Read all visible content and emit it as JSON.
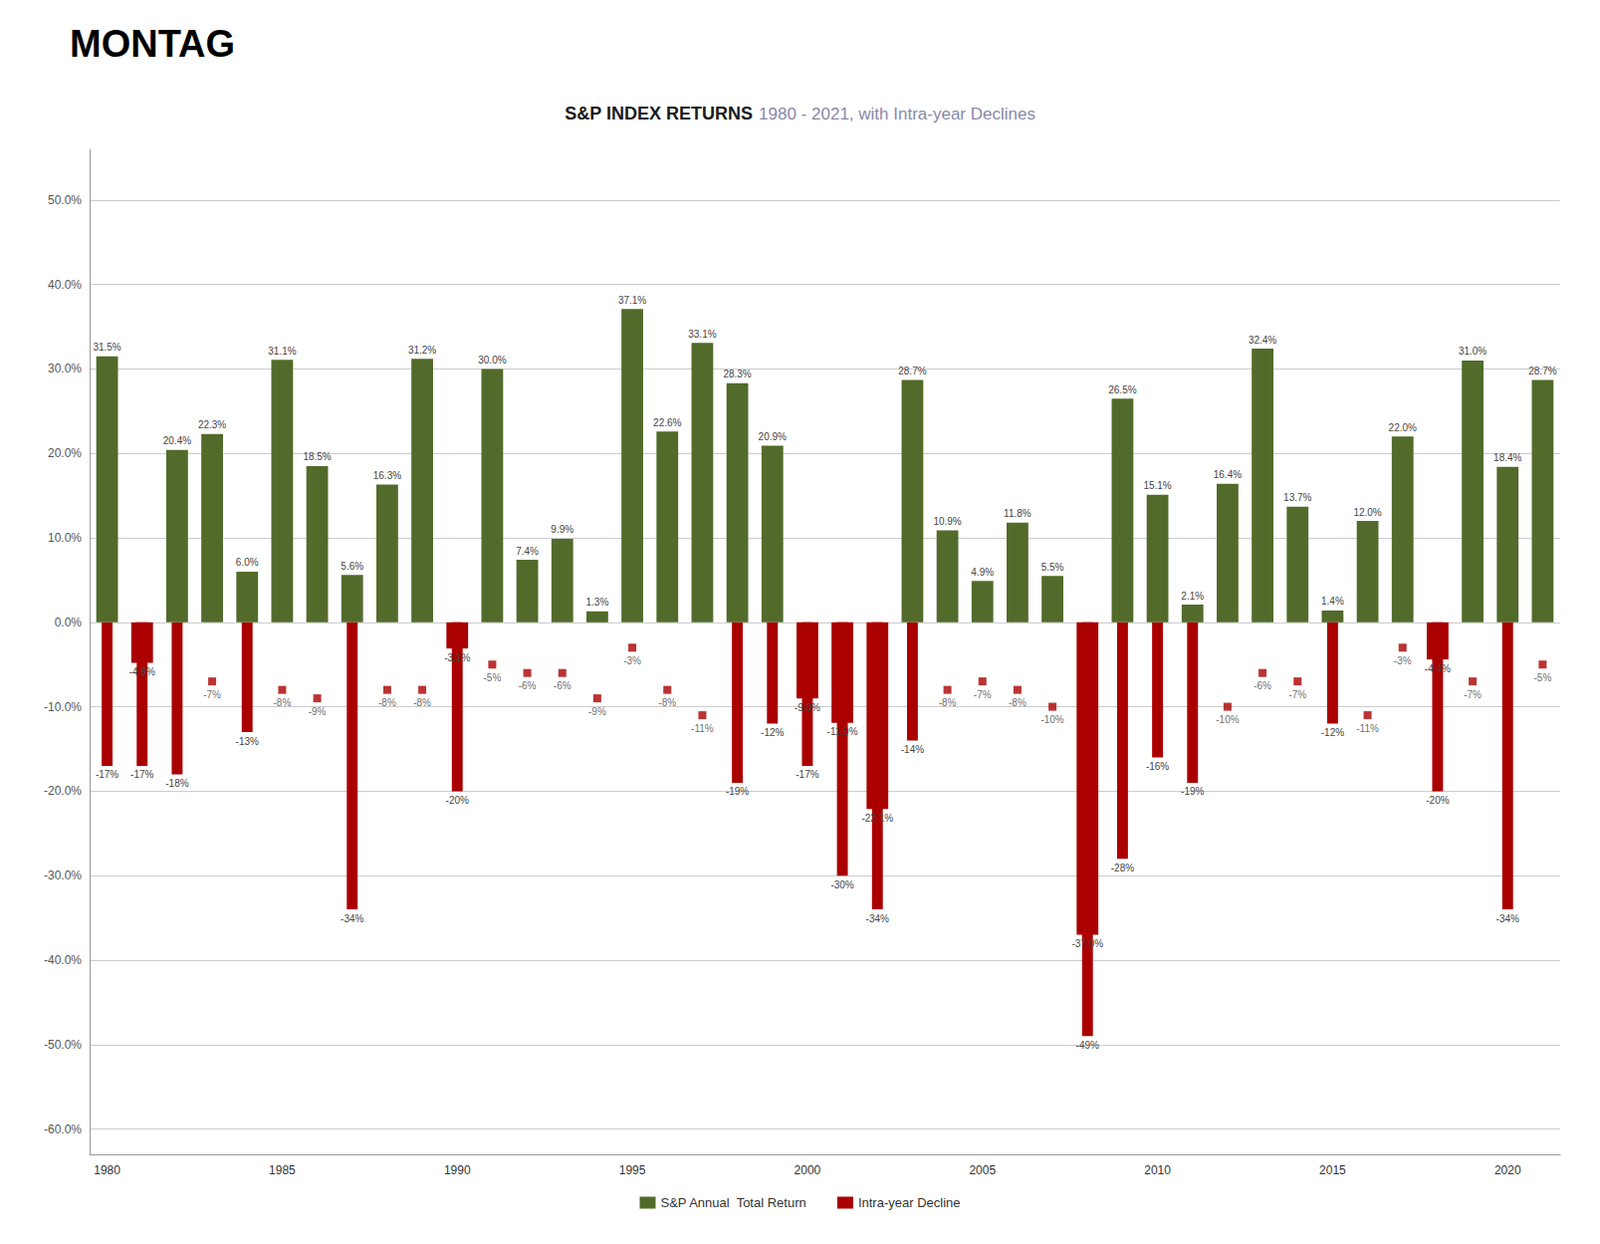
{
  "chart_data": {
    "type": "bar",
    "title": "S&P INDEX RETURNS",
    "subtitle": "1980 - 2021, with Intra-year Declines",
    "annotations": [
      "MONTAG"
    ],
    "categories": [
      "1980",
      null,
      null,
      null,
      null,
      "1985",
      null,
      null,
      null,
      null,
      "1990",
      null,
      null,
      null,
      null,
      "1995",
      null,
      null,
      null,
      null,
      "2000",
      null,
      null,
      null,
      null,
      "2005",
      null,
      null,
      null,
      null,
      "2010",
      null,
      null,
      null,
      null,
      "2015",
      null,
      null,
      null,
      null,
      "2020",
      null
    ],
    "series": [
      {
        "name": "S&P Annual  Total Return",
        "type": "bar",
        "color": "#526B2A",
        "colors": [
          "#526B2A",
          "#AA0000",
          "#526B2A",
          "#526B2A",
          "#526B2A",
          "#526B2A",
          "#526B2A",
          "#526B2A",
          "#526B2A",
          "#526B2A",
          "#AA0000",
          "#526B2A",
          "#526B2A",
          "#526B2A",
          "#526B2A",
          "#526B2A",
          "#526B2A",
          "#526B2A",
          "#526B2A",
          "#526B2A",
          "#AA0000",
          "#AA0000",
          "#AA0000",
          "#526B2A",
          "#526B2A",
          "#526B2A",
          "#526B2A",
          "#526B2A",
          "#AA0000",
          "#526B2A",
          "#526B2A",
          "#526B2A",
          "#526B2A",
          "#526B2A",
          "#526B2A",
          "#526B2A",
          "#526B2A",
          "#526B2A",
          "#AA0000",
          "#526B2A",
          "#526B2A",
          "#526B2A"
        ],
        "values": [
          31.5,
          -4.8,
          20.4,
          22.3,
          6.0,
          31.1,
          18.5,
          5.6,
          16.3,
          31.2,
          -3.1,
          30.0,
          7.4,
          9.9,
          1.3,
          37.1,
          22.6,
          33.1,
          28.3,
          20.9,
          -9.0,
          -11.9,
          -22.1,
          28.7,
          10.9,
          4.9,
          11.8,
          5.5,
          -37.0,
          26.5,
          15.1,
          2.1,
          16.4,
          32.4,
          13.7,
          1.4,
          12.0,
          22.0,
          -4.4,
          31.0,
          18.4,
          28.7
        ],
        "value_labels": [
          "31.5%",
          "-4.8%",
          "20.4%",
          "22.3%",
          "6.0%",
          "31.1%",
          "18.5%",
          "5.6%",
          "16.3%",
          "31.2%",
          "-3.1%",
          "30.0%",
          "7.4%",
          "9.9%",
          "1.3%",
          "37.1%",
          "22.6%",
          "33.1%",
          "28.3%",
          "20.9%",
          "-9.0%",
          "-11.9%",
          "-22.1%",
          "28.7%",
          "10.9%",
          "4.9%",
          "11.8%",
          "5.5%",
          "-37.0%",
          "26.5%",
          "15.1%",
          "2.1%",
          "16.4%",
          "32.4%",
          "13.7%",
          "1.4%",
          "12.0%",
          "22.0%",
          "-4.4%",
          "31.0%",
          "18.4%",
          "28.7%"
        ]
      },
      {
        "name": "Intra-year Decline",
        "type": "bar",
        "color": "#AA0000",
        "values": [
          -17,
          -17,
          -18,
          null,
          -13,
          null,
          null,
          -34,
          null,
          null,
          -20,
          null,
          null,
          null,
          null,
          null,
          null,
          null,
          -19,
          -12,
          -17,
          -30,
          -34,
          -14,
          null,
          null,
          null,
          null,
          -49,
          -28,
          -16,
          -19,
          null,
          null,
          null,
          -12,
          null,
          null,
          -20,
          null,
          -34,
          null
        ],
        "value_labels": [
          "-17%",
          "-17%",
          "-18%",
          null,
          "-13%",
          null,
          null,
          "-34%",
          null,
          null,
          "-20%",
          null,
          null,
          null,
          null,
          null,
          null,
          null,
          "-19%",
          "-12%",
          "-17%",
          "-30%",
          "-34%",
          "-14%",
          null,
          null,
          null,
          null,
          "-49%",
          "-28%",
          "-16%",
          "-19%",
          null,
          null,
          null,
          "-12%",
          null,
          null,
          "-20%",
          null,
          "-34%",
          null
        ]
      },
      {
        "name": "Intra-year Decline",
        "type": "scatter",
        "marker": "square",
        "color": "#AA0000",
        "values": [
          null,
          null,
          null,
          -7,
          null,
          -8,
          -9,
          null,
          -8,
          -8,
          null,
          -5,
          -6,
          -6,
          -9,
          -3,
          -8,
          -11,
          null,
          null,
          null,
          null,
          null,
          null,
          -8,
          -7,
          -8,
          -10,
          null,
          null,
          null,
          null,
          -10,
          -6,
          -7,
          null,
          -11,
          -3,
          null,
          -7,
          null,
          -5
        ],
        "value_labels": [
          null,
          null,
          null,
          "-7%",
          null,
          "-8%",
          "-9%",
          null,
          "-8%",
          "-8%",
          null,
          "-5%",
          "-6%",
          "-6%",
          "-9%",
          "-3%",
          "-8%",
          "-11%",
          null,
          null,
          null,
          null,
          null,
          null,
          "-8%",
          "-7%",
          "-8%",
          "-10%",
          null,
          null,
          null,
          null,
          "-10%",
          "-6%",
          "-7%",
          null,
          "-11%",
          "-3%",
          null,
          "-7%",
          null,
          "-5%"
        ]
      }
    ],
    "ylim": [
      -63,
      56
    ],
    "yticks": [
      {
        "value": -60,
        "label": "-60.0%"
      },
      {
        "value": -50,
        "label": "-50.0%"
      },
      {
        "value": -40,
        "label": "-40.0%"
      },
      {
        "value": -30,
        "label": "-30.0%"
      },
      {
        "value": -20,
        "label": "-20.0%"
      },
      {
        "value": -10,
        "label": "-10.0%"
      },
      {
        "value": 0,
        "label": "0.0%"
      },
      {
        "value": 10,
        "label": "10.0%"
      },
      {
        "value": 20,
        "label": "20.0%"
      },
      {
        "value": 30,
        "label": "30.0%"
      },
      {
        "value": 40,
        "label": "40.0%"
      },
      {
        "value": 50,
        "label": "50.0%"
      }
    ],
    "grid": true,
    "legend": "bottom",
    "data_labels": true
  }
}
